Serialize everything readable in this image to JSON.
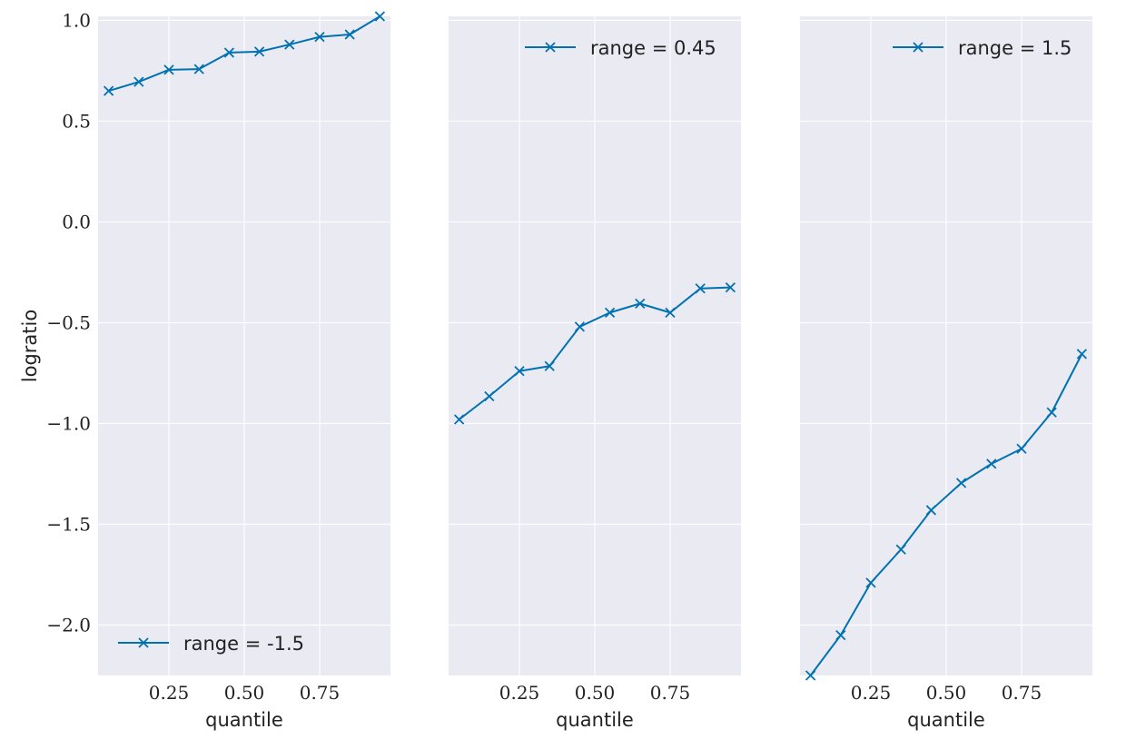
{
  "chart_data": {
    "type": "line",
    "ylabel": "logratio",
    "ylim": [
      -2.25,
      1.02
    ],
    "yticks": [
      -2.0,
      -1.5,
      -1.0,
      -0.5,
      0.0,
      0.5,
      1.0
    ],
    "ytick_labels": [
      "−2.0",
      "−1.5",
      "−1.0",
      "−0.5",
      "0.0",
      "0.5",
      "1.0"
    ],
    "xticks": [
      0.25,
      0.5,
      0.75
    ],
    "xtick_labels": [
      "0.25",
      "0.50",
      "0.75"
    ],
    "grid": true,
    "line_color": "#0072b2",
    "panels": [
      {
        "xlabel": "quantile",
        "xlim": [
          0.015,
          0.985
        ],
        "legend_placement": "lower-left",
        "series": [
          {
            "name": "range = -1.5",
            "x": [
              0.05,
              0.15,
              0.25,
              0.35,
              0.45,
              0.55,
              0.65,
              0.75,
              0.85,
              0.95
            ],
            "y": [
              0.65,
              0.695,
              0.755,
              0.758,
              0.84,
              0.845,
              0.88,
              0.918,
              0.93,
              1.02
            ]
          }
        ]
      },
      {
        "xlabel": "quantile",
        "xlim": [
          0.015,
          0.985
        ],
        "legend_placement": "top-right",
        "series": [
          {
            "name": "range = 0.45",
            "x": [
              0.05,
              0.15,
              0.25,
              0.35,
              0.45,
              0.55,
              0.65,
              0.75,
              0.85,
              0.95
            ],
            "y": [
              -0.98,
              -0.865,
              -0.74,
              -0.715,
              -0.52,
              -0.45,
              -0.405,
              -0.45,
              -0.33,
              -0.325
            ]
          }
        ]
      },
      {
        "xlabel": "quantile",
        "xlim": [
          0.015,
          0.985
        ],
        "legend_placement": "top-right",
        "series": [
          {
            "name": "range = 1.5",
            "x": [
              0.05,
              0.15,
              0.25,
              0.35,
              0.45,
              0.55,
              0.65,
              0.75,
              0.85,
              0.95
            ],
            "y": [
              -2.25,
              -2.05,
              -1.79,
              -1.625,
              -1.43,
              -1.295,
              -1.2,
              -1.125,
              -0.945,
              -0.655
            ]
          }
        ]
      }
    ]
  }
}
